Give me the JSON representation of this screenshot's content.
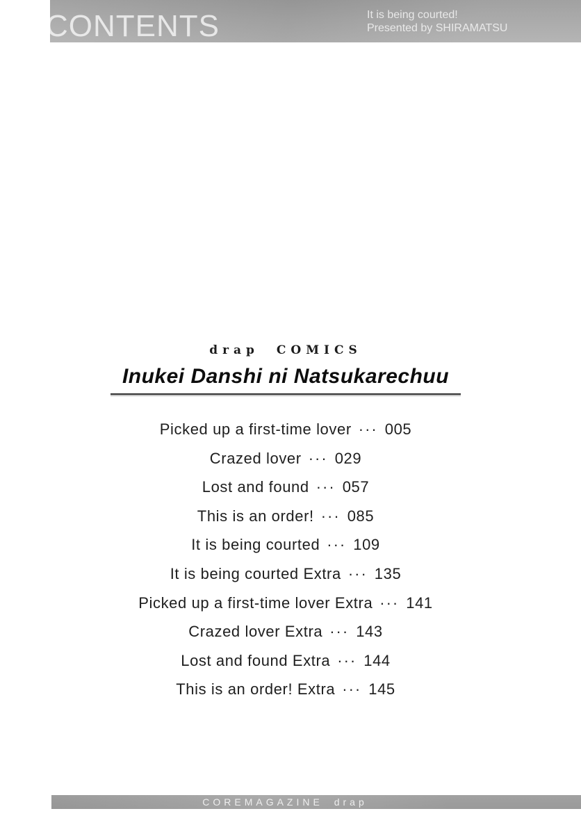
{
  "header": {
    "title": "CONTENTS",
    "caption_line1": "It is being courted!",
    "caption_line2": "Presented by SHIRAMATSU"
  },
  "book": {
    "imprint": "drap COMICS",
    "title": "Inukei Danshi ni Natsukarechuu"
  },
  "toc": {
    "separator": "···",
    "entries": [
      {
        "title": "Picked up a first-time lover",
        "page": "005"
      },
      {
        "title": "Crazed lover",
        "page": "029"
      },
      {
        "title": "Lost and found",
        "page": "057"
      },
      {
        "title": "This is an order!",
        "page": "085"
      },
      {
        "title": "It is being courted",
        "page": "109"
      },
      {
        "title": "It is being courted Extra",
        "page": "135"
      },
      {
        "title": "Picked up a first-time lover Extra",
        "page": "141"
      },
      {
        "title": "Crazed lover Extra",
        "page": "143"
      },
      {
        "title": "Lost and found Extra",
        "page": "144"
      },
      {
        "title": "This is an order! Extra",
        "page": "145"
      }
    ]
  },
  "footer": {
    "publisher": "COREMAGAZINE drap"
  },
  "colors": {
    "band_gray": "#a7a7a7",
    "band_text": "#f0f0f0",
    "body_text": "#1e1e1e",
    "rule_dark": "#2e2e2e"
  }
}
